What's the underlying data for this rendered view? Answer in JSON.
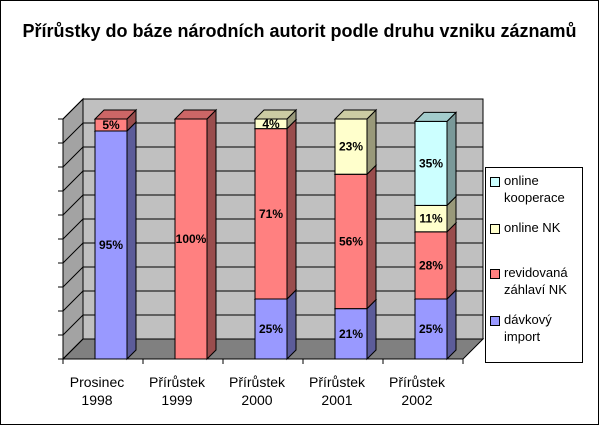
{
  "chart_data": {
    "type": "bar",
    "stacked": true,
    "percent": true,
    "three_d": true,
    "title": "Přírůstky do báze národních autorit podle druhu vzniku záznamů",
    "categories": [
      [
        "Prosinec",
        "1998"
      ],
      [
        "Přírůstek",
        "1999"
      ],
      [
        "Přírůstek",
        "2000"
      ],
      [
        "Přírůstek",
        "2001"
      ],
      [
        "Přírůstek",
        "2002"
      ]
    ],
    "series": [
      {
        "name": "dávkový import",
        "color": "#9999FF",
        "values": [
          95,
          0,
          25,
          21,
          25
        ],
        "labels": [
          "95%",
          "",
          "25%",
          "21%",
          "25%"
        ]
      },
      {
        "name": "revidovaná záhlaví NK",
        "color": "#FF8080",
        "values": [
          5,
          100,
          71,
          56,
          28
        ],
        "labels": [
          "5%",
          "100%",
          "71%",
          "56%",
          "28%"
        ]
      },
      {
        "name": "online NK",
        "color": "#FFFFCC",
        "values": [
          0,
          0,
          4,
          23,
          11
        ],
        "labels": [
          "",
          "",
          "4%",
          "23%",
          "11%"
        ]
      },
      {
        "name": "online kooperace",
        "color": "#CCFFFF",
        "values": [
          0,
          0,
          0,
          0,
          35
        ],
        "labels": [
          "",
          "",
          "",
          "",
          "35%"
        ]
      }
    ],
    "legend_order": [
      "online kooperace",
      "online NK",
      "revidovaná záhlaví NK",
      "dávkový import"
    ],
    "legend_position": "right",
    "ylim": [
      0,
      100
    ],
    "grid": true,
    "wall_color": "#C0C0C0",
    "floor_color": "#808080"
  }
}
